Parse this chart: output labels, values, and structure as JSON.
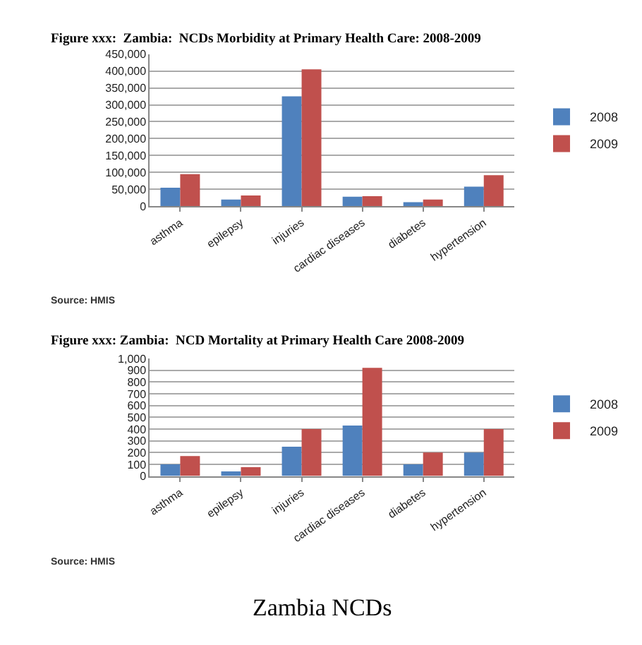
{
  "chart_data": [
    {
      "type": "bar",
      "title": "Figure xxx:  Zambia:  NCDs Morbidity at Primary Health Care: 2008-2009",
      "categories": [
        "asthma",
        "epilepsy",
        "injuries",
        "cardiac diseases",
        "diabetes",
        "hypertension"
      ],
      "series": [
        {
          "name": "2008",
          "color": "#4f81bd",
          "values": [
            55000,
            20000,
            325000,
            28000,
            12000,
            58000
          ]
        },
        {
          "name": "2009",
          "color": "#c0504d",
          "values": [
            95000,
            32000,
            405000,
            30000,
            20000,
            92000
          ]
        }
      ],
      "ylim": [
        0,
        450000
      ],
      "yticks": [
        {
          "value": 0,
          "label": "0"
        },
        {
          "value": 50000,
          "label": "50,000"
        },
        {
          "value": 100000,
          "label": "100,000"
        },
        {
          "value": 150000,
          "label": "150,000"
        },
        {
          "value": 200000,
          "label": "200,000"
        },
        {
          "value": 250000,
          "label": "250,000"
        },
        {
          "value": 300000,
          "label": "300,000"
        },
        {
          "value": 350000,
          "label": "350,000"
        },
        {
          "value": 400000,
          "label": "400,000"
        },
        {
          "value": 450000,
          "label": "450,000"
        }
      ],
      "grid": "y",
      "legend": "right",
      "annotations": [
        "Source: HMIS"
      ]
    },
    {
      "type": "bar",
      "title": "Figure xxx: Zambia:  NCD Mortality at Primary Health Care 2008-2009",
      "categories": [
        "asthma",
        "epilepsy",
        "injuries",
        "cardiac diseases",
        "diabetes",
        "hypertension"
      ],
      "series": [
        {
          "name": "2008",
          "color": "#4f81bd",
          "values": [
            100,
            40,
            250,
            430,
            100,
            200
          ]
        },
        {
          "name": "2009",
          "color": "#c0504d",
          "values": [
            170,
            75,
            400,
            920,
            200,
            400
          ]
        }
      ],
      "ylim": [
        0,
        1000
      ],
      "yticks": [
        0,
        100,
        200,
        300,
        400,
        500,
        600,
        700,
        800,
        900,
        {
          "value": 1000,
          "label": "1,000"
        }
      ],
      "grid": "y",
      "legend": "right",
      "annotations": [
        "Source: HMIS",
        "Zambia NCDs"
      ]
    }
  ]
}
